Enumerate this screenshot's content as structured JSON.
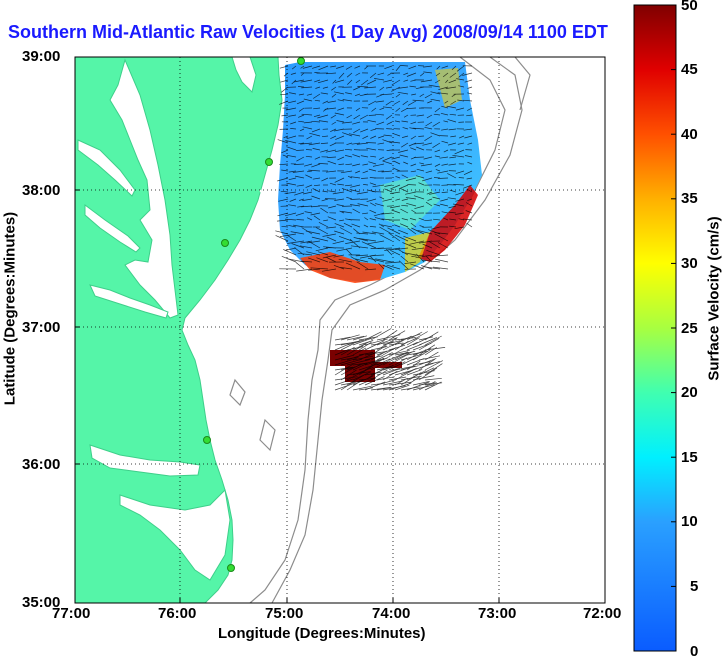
{
  "title": "Southern Mid-Atlantic Raw Velocities (1 Day Avg) 2008/09/14 1100 EDT",
  "x_axis": {
    "label": "Longitude (Degrees:Minutes)",
    "ticks": [
      "77:00",
      "76:00",
      "75:00",
      "74:00",
      "73:00",
      "72:00"
    ]
  },
  "y_axis": {
    "label": "Latitude (Degrees:Minutes)",
    "ticks": [
      "39:00",
      "38:00",
      "37:00",
      "36:00",
      "35:00"
    ]
  },
  "colorbar": {
    "label": "Surface Velocity (cm/s)",
    "ticks": [
      "50",
      "45",
      "40",
      "35",
      "30",
      "25",
      "20",
      "15",
      "10",
      "5",
      "0"
    ],
    "min": 0,
    "max": 50
  },
  "colors": {
    "land": "#55f5a8",
    "water": "#ffffff",
    "title": "#1a1aff",
    "contour": "#8c8c8c",
    "station": "#33dd33"
  },
  "map_extent": {
    "lon": [
      -77,
      -72
    ],
    "lat": [
      35,
      39
    ]
  }
}
